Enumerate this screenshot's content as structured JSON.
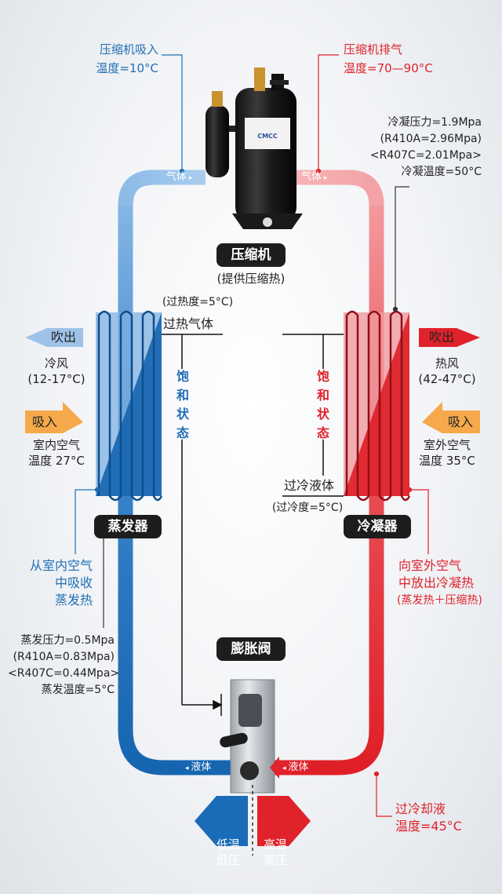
{
  "compressor_intake": {
    "line1": "压缩机吸入",
    "line2": "温度=10°C"
  },
  "compressor_exhaust": {
    "line1": "压缩机排气",
    "line2": "温度=70—90°C"
  },
  "condensing": {
    "line1": "冷凝压力=1.9Mpa",
    "line2": "(R410A=2.96Mpa)",
    "line3": "<R407C=2.01Mpa>",
    "line4": "冷凝温度=50°C"
  },
  "compressor": {
    "title": "压缩机",
    "subtitle": "(提供压缩热)"
  },
  "pipe_labels": {
    "gas": "气体",
    "liquid": "液体"
  },
  "superheat": {
    "degree": "(过热度=5°C)",
    "label": "过热气体"
  },
  "subcool": {
    "label": "过冷液体",
    "degree": "(过冷度=5°C)"
  },
  "saturation": {
    "left": [
      "饱",
      "和",
      "状",
      "态"
    ],
    "right": [
      "饱",
      "和",
      "状",
      "态"
    ]
  },
  "evaporator_side": {
    "blow_out": "吹出",
    "blow_out_desc1": "冷风",
    "blow_out_desc2": "(12-17°C)",
    "intake": "吸入",
    "intake_desc1": "室内空气",
    "intake_desc2": "温度 27°C",
    "name": "蒸发器",
    "absorb1": "从室内空气",
    "absorb2": "中吸收",
    "absorb3": "蒸发热"
  },
  "condenser_side": {
    "blow_out": "吹出",
    "blow_out_desc1": "热风",
    "blow_out_desc2": "(42-47°C)",
    "intake": "吸入",
    "intake_desc1": "室外空气",
    "intake_desc2": "温度 35°C",
    "name": "冷凝器",
    "release1": "向室外空气",
    "release2": "中放出冷凝热",
    "release3": "(蒸发热＋压缩热)"
  },
  "evaporating": {
    "line1": "蒸发压力=0.5Mpa",
    "line2": "(R410A=0.83Mpa)",
    "line3": "<R407C=0.44Mpa>",
    "line4": "蒸发温度=5°C"
  },
  "expansion_valve": {
    "title": "膨胀阀"
  },
  "subcooled_liquid": {
    "line1": "过冷却液",
    "line2": "温度=45°C"
  },
  "pressure_zones": {
    "low": [
      "低温",
      "低压"
    ],
    "high": [
      "高温",
      "高压"
    ]
  },
  "compressor_label": "CMCC",
  "colors": {
    "cold": "#1a6bb8",
    "cold_light": "#7fb3e6",
    "hot": "#e0222a",
    "hot_light": "#f08a8f",
    "arrow_in": "#f5a94a"
  }
}
